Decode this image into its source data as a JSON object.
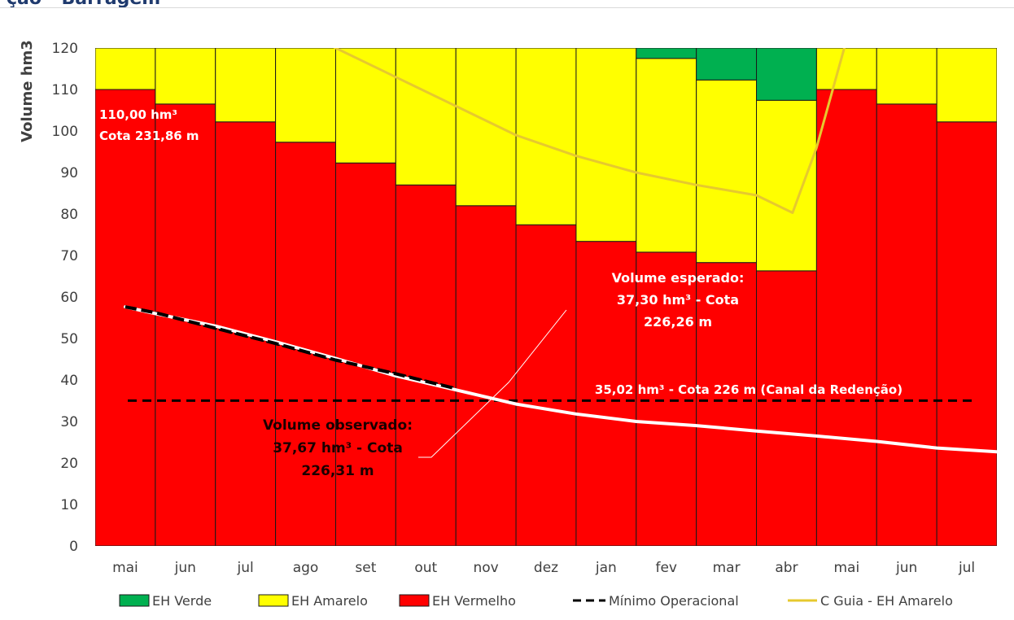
{
  "header": {
    "title": "ção - Barragem"
  },
  "chart_data": {
    "type": "bar",
    "stacked": true,
    "categories": [
      "mai",
      "jun",
      "jul",
      "ago",
      "set",
      "out",
      "nov",
      "dez",
      "jan",
      "fev",
      "mar",
      "abr",
      "mai",
      "jun",
      "jul"
    ],
    "ylabel": "Volume hm3",
    "xlabel": "",
    "ylim": [
      0,
      120
    ],
    "yticks": [
      0,
      10,
      20,
      30,
      40,
      50,
      60,
      70,
      80,
      90,
      100,
      110,
      120
    ],
    "grid": false,
    "legend_position": "bottom",
    "series": [
      {
        "name": "EH Vermelho",
        "kind": "bar",
        "color": "#ff0000",
        "values": [
          110,
          106.5,
          102.2,
          97.3,
          92.3,
          87.0,
          82.0,
          77.4,
          73.4,
          70.8,
          68.3,
          66.3,
          110,
          106.5,
          102.2
        ]
      },
      {
        "name": "EH Amarelo",
        "kind": "bar",
        "color": "#ffff00",
        "values": [
          10,
          13.5,
          17.8,
          22.7,
          27.7,
          33.0,
          38.0,
          42.6,
          46.6,
          46.7,
          44.0,
          41.1,
          10,
          13.5,
          17.8
        ]
      },
      {
        "name": "EH Verde",
        "kind": "bar",
        "color": "#00b050",
        "values": [
          0,
          0,
          0,
          0,
          0,
          0,
          0,
          0,
          0,
          2.5,
          7.7,
          12.6,
          0,
          0,
          0
        ]
      },
      {
        "name": "Mínimo Operacional",
        "kind": "hline",
        "color": "#000000",
        "dash": true,
        "value": 35.02
      },
      {
        "name": "C Guia - EH Amarelo",
        "kind": "line",
        "color": "#e6c92e",
        "points": [
          [
            3.6,
            124
          ],
          [
            4.0,
            120
          ],
          [
            5.0,
            113
          ],
          [
            6.0,
            106
          ],
          [
            7.0,
            99
          ],
          [
            8.0,
            94
          ],
          [
            9.0,
            90
          ],
          [
            10.0,
            87
          ],
          [
            11.0,
            84.5
          ],
          [
            11.6,
            80.3
          ],
          [
            12.0,
            96
          ],
          [
            12.5,
            122
          ]
        ]
      },
      {
        "name": "Volume observado",
        "kind": "line",
        "color": "#000000",
        "dash": true,
        "points": [
          [
            0.5,
            57.6
          ],
          [
            1.0,
            56.2
          ],
          [
            2.0,
            52.5
          ],
          [
            3.0,
            48.8
          ],
          [
            4.0,
            44.8
          ],
          [
            5.0,
            41.5
          ],
          [
            6.0,
            37.9
          ]
        ]
      },
      {
        "name": "Volume esperado",
        "kind": "line",
        "color": "#ffffff",
        "points": [
          [
            0.5,
            57.6
          ],
          [
            1.0,
            56.0
          ],
          [
            2.0,
            53.0
          ],
          [
            3.0,
            49.2
          ],
          [
            4.0,
            45.2
          ],
          [
            5.0,
            41.0
          ],
          [
            6.0,
            37.6
          ],
          [
            7.0,
            34.2
          ],
          [
            8.0,
            31.8
          ],
          [
            9.0,
            30.0
          ],
          [
            10.0,
            29.0
          ],
          [
            11.0,
            27.7
          ],
          [
            12.0,
            26.5
          ],
          [
            13.0,
            25.2
          ],
          [
            14.0,
            23.6
          ],
          [
            15.0,
            22.7
          ]
        ]
      }
    ],
    "legend": [
      {
        "label": "EH Verde",
        "swatch": "box",
        "color": "#00b050"
      },
      {
        "label": "EH Amarelo",
        "swatch": "box",
        "color": "#ffff00"
      },
      {
        "label": "EH Vermelho",
        "swatch": "box",
        "color": "#ff0000"
      },
      {
        "label": "Mínimo Operacional",
        "swatch": "dash",
        "color": "#000000"
      },
      {
        "label": "C Guia - EH Amarelo",
        "swatch": "line",
        "color": "#e6c92e"
      }
    ],
    "annotations": {
      "max_volume_line1": "110,00 hm³",
      "max_volume_line2": "Cota 231,86 m",
      "esperado_line1": "Volume esperado:",
      "esperado_line2": "37,30 hm³ - Cota",
      "esperado_line3": "226,26 m",
      "observado_line1": "Volume observado:",
      "observado_line2": "37,67 hm³ - Cota",
      "observado_line3": "226,31 m",
      "minimo_label": "35,02 hm³ - Cota 226 m (Canal da Redenção)"
    }
  }
}
